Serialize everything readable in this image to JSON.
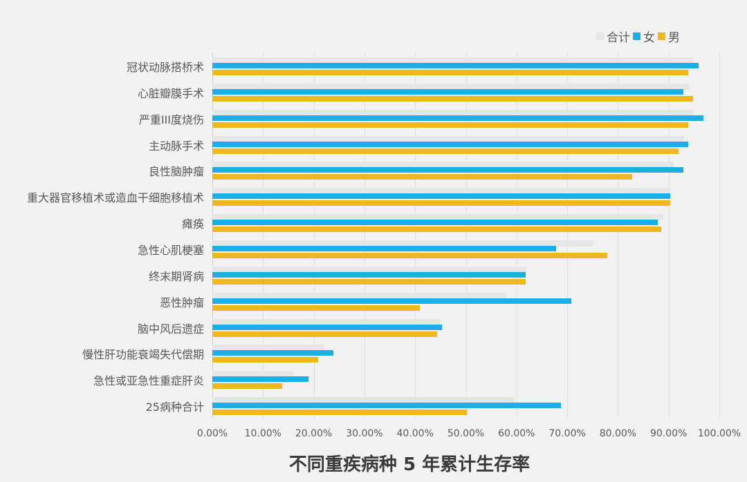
{
  "chart_data": {
    "type": "bar",
    "orientation": "horizontal",
    "title": "不同重疾病种 5 年累计生存率",
    "xlabel": "",
    "ylabel": "",
    "xlim": [
      0,
      100
    ],
    "x_ticks": [
      "0.00%",
      "10.00%",
      "20.00%",
      "30.00%",
      "40.00%",
      "50.00%",
      "60.00%",
      "70.00%",
      "80.00%",
      "90.00%",
      "100.00%"
    ],
    "grid": "vertical",
    "legend_position": "top-right",
    "categories": [
      "冠状动脉搭桥术",
      "心脏瓣膜手术",
      "严重III度烧伤",
      "主动脉手术",
      "良性脑肿瘤",
      "重大器官移植术或造血干细胞移植术",
      "瘫痪",
      "急性心肌梗塞",
      "终末期肾病",
      "恶性肿瘤",
      "脑中风后遗症",
      "慢性肝功能衰竭失代偿期",
      "急性或亚急性重症肝炎",
      "25病种合计"
    ],
    "series": [
      {
        "name": "合计",
        "color": "#e6e6e6",
        "values": [
          94.8,
          94.0,
          95.0,
          93.0,
          91.0,
          90.3,
          89.0,
          75.0,
          62.0,
          58.0,
          45.0,
          22.0,
          16.0,
          59.5
        ]
      },
      {
        "name": "女",
        "color": "#1aafe6",
        "values": [
          95.9,
          92.9,
          96.9,
          93.9,
          92.9,
          90.3,
          87.9,
          67.8,
          61.8,
          70.8,
          45.3,
          23.9,
          19.0,
          68.8
        ]
      },
      {
        "name": "男",
        "color": "#f0b81e",
        "values": [
          93.9,
          94.8,
          93.9,
          92.0,
          82.8,
          90.3,
          88.5,
          77.9,
          61.8,
          40.9,
          44.3,
          20.9,
          13.8,
          50.2
        ]
      }
    ]
  },
  "legend": [
    {
      "label": "合计",
      "color": "#e6e6e6"
    },
    {
      "label": "女",
      "color": "#1aafe6"
    },
    {
      "label": "男",
      "color": "#f0b81e"
    }
  ]
}
